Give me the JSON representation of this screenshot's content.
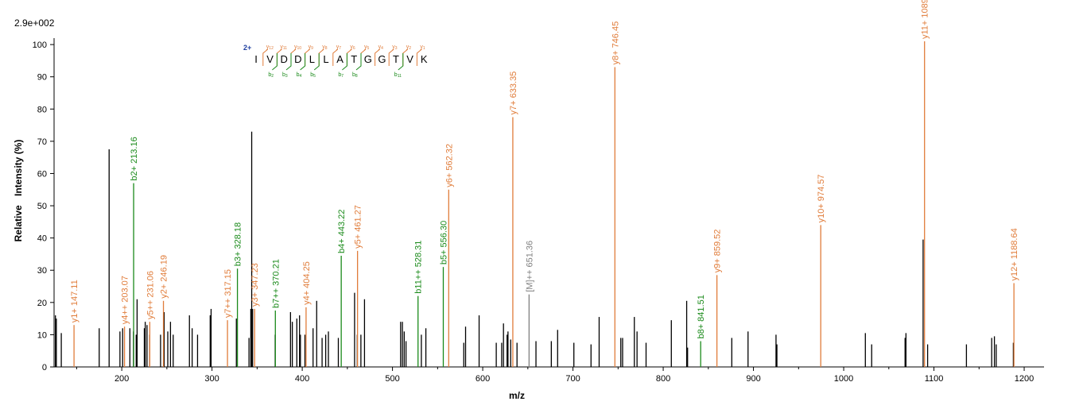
{
  "chart_data": {
    "type": "bar",
    "title": "",
    "scale_label": "2.9e+002",
    "xlabel": "m/z",
    "ylabel_parts": [
      "Relative",
      "Intensity (%)"
    ],
    "xlim": [
      125,
      1222
    ],
    "ylim": [
      0,
      102
    ],
    "x_ticks": [
      100,
      200,
      300,
      400,
      500,
      600,
      700,
      800,
      900,
      1000,
      1100,
      1200
    ],
    "y_ticks": [
      0,
      10,
      20,
      30,
      40,
      50,
      60,
      70,
      80,
      90,
      100
    ],
    "colors": {
      "unmatched": "#000000",
      "y_ion": "#E07C3A",
      "b_ion": "#1A8A1A",
      "precursor": "#808080",
      "charge": "#1F3FA0"
    },
    "unmatched_peaks": [
      [
        126.5,
        16
      ],
      [
        127.5,
        15
      ],
      [
        133,
        10.5
      ],
      [
        175,
        12
      ],
      [
        186,
        67.5
      ],
      [
        198,
        11
      ],
      [
        201,
        12
      ],
      [
        209,
        12
      ],
      [
        213,
        11
      ],
      [
        216,
        10
      ],
      [
        217,
        21
      ],
      [
        225,
        12
      ],
      [
        226,
        14
      ],
      [
        228,
        13
      ],
      [
        231,
        10
      ],
      [
        243,
        10
      ],
      [
        247,
        17
      ],
      [
        251,
        11
      ],
      [
        254,
        14
      ],
      [
        257,
        10
      ],
      [
        275,
        16
      ],
      [
        278,
        12
      ],
      [
        284,
        10
      ],
      [
        298,
        16
      ],
      [
        299,
        18
      ],
      [
        327,
        15
      ],
      [
        341,
        9
      ],
      [
        343,
        18
      ],
      [
        344,
        73
      ],
      [
        345,
        18
      ],
      [
        370,
        10
      ],
      [
        387,
        17
      ],
      [
        389,
        14
      ],
      [
        394,
        15
      ],
      [
        397,
        16
      ],
      [
        398,
        10
      ],
      [
        403,
        10
      ],
      [
        412,
        12
      ],
      [
        416,
        20.5
      ],
      [
        422,
        9
      ],
      [
        426,
        10
      ],
      [
        429,
        11
      ],
      [
        440,
        9
      ],
      [
        458,
        23
      ],
      [
        461,
        10
      ],
      [
        465,
        10
      ],
      [
        469,
        21
      ],
      [
        509,
        14
      ],
      [
        511,
        14
      ],
      [
        513,
        11
      ],
      [
        515,
        8
      ],
      [
        532,
        10
      ],
      [
        537,
        12
      ],
      [
        579,
        7.5
      ],
      [
        581,
        12.5
      ],
      [
        596,
        16
      ],
      [
        615,
        7.5
      ],
      [
        621,
        7.5
      ],
      [
        623,
        13.5
      ],
      [
        627,
        10
      ],
      [
        628,
        11
      ],
      [
        631,
        8.5
      ],
      [
        638,
        7.5
      ],
      [
        659,
        8
      ],
      [
        676,
        8
      ],
      [
        683,
        11.5
      ],
      [
        701,
        7.5
      ],
      [
        720,
        7
      ],
      [
        729,
        15.5
      ],
      [
        753,
        9
      ],
      [
        755,
        9
      ],
      [
        768,
        15.5
      ],
      [
        771,
        11
      ],
      [
        781,
        7.5
      ],
      [
        809,
        14.5
      ],
      [
        826,
        20.5
      ],
      [
        827,
        6
      ],
      [
        876,
        9
      ],
      [
        894,
        11
      ],
      [
        925,
        10
      ],
      [
        926,
        7
      ],
      [
        1024,
        10.5
      ],
      [
        1031,
        7
      ],
      [
        1068,
        9
      ],
      [
        1069,
        10.5
      ],
      [
        1088,
        39.5
      ],
      [
        1093,
        7
      ],
      [
        1136,
        7
      ],
      [
        1164,
        9
      ],
      [
        1167,
        9.5
      ],
      [
        1169,
        7
      ],
      [
        1188,
        7.5
      ]
    ],
    "annotated_peaks": [
      {
        "mz": 147.11,
        "intensity": 13,
        "label": "y1+ 147.11",
        "ion": "y"
      },
      {
        "mz": 203.07,
        "intensity": 12.5,
        "label": "y4++ 203.07",
        "ion": "y"
      },
      {
        "mz": 213.16,
        "intensity": 57,
        "label": "b2+ 213.16",
        "ion": "b"
      },
      {
        "mz": 231.06,
        "intensity": 14,
        "label": "y5++ 231.06",
        "ion": "y"
      },
      {
        "mz": 246.19,
        "intensity": 20.5,
        "label": "y2+ 246.19",
        "ion": "y"
      },
      {
        "mz": 317.15,
        "intensity": 14.5,
        "label": "y7++ 317.15",
        "ion": "y"
      },
      {
        "mz": 328.18,
        "intensity": 30.5,
        "label": "b3+ 328.18",
        "ion": "b"
      },
      {
        "mz": 347.23,
        "intensity": 18,
        "label": "y3+ 347.23",
        "ion": "y"
      },
      {
        "mz": 370.21,
        "intensity": 17.5,
        "label": "b7++ 370.21",
        "ion": "b"
      },
      {
        "mz": 404.25,
        "intensity": 18.5,
        "label": "y4+ 404.25",
        "ion": "y"
      },
      {
        "mz": 443.22,
        "intensity": 34.5,
        "label": "b4+ 443.22",
        "ion": "b"
      },
      {
        "mz": 461.27,
        "intensity": 36,
        "label": "y5+ 461.27",
        "ion": "y"
      },
      {
        "mz": 528.31,
        "intensity": 22,
        "label": "b11++ 528.31",
        "ion": "b"
      },
      {
        "mz": 556.3,
        "intensity": 31,
        "label": "b5+ 556.30",
        "ion": "b"
      },
      {
        "mz": 562.32,
        "intensity": 55,
        "label": "y6+ 562.32",
        "ion": "y"
      },
      {
        "mz": 633.35,
        "intensity": 77.5,
        "label": "y7+ 633.35",
        "ion": "y"
      },
      {
        "mz": 651.36,
        "intensity": 22.5,
        "label": "[M]++ 651.36",
        "ion": "precursor"
      },
      {
        "mz": 746.45,
        "intensity": 93,
        "label": "y8+ 746.45",
        "ion": "y"
      },
      {
        "mz": 841.51,
        "intensity": 8,
        "label": "b8+ 841.51",
        "ion": "b"
      },
      {
        "mz": 859.52,
        "intensity": 28.5,
        "label": "y9+ 859.52",
        "ion": "y"
      },
      {
        "mz": 974.57,
        "intensity": 44,
        "label": "y10+ 974.57",
        "ion": "y"
      },
      {
        "mz": 1089.57,
        "intensity": 101,
        "label": "y11+ 1089.57",
        "ion": "y"
      },
      {
        "mz": 1188.64,
        "intensity": 26,
        "label": "y12+ 1188.64",
        "ion": "y"
      }
    ],
    "sequence": {
      "charge": "2+",
      "residues": [
        "I",
        "V",
        "D",
        "D",
        "L",
        "L",
        "A",
        "T",
        "G",
        "G",
        "T",
        "V",
        "K"
      ],
      "y_ions": [
        {
          "gap": 1,
          "name": "y",
          "sub": "12"
        },
        {
          "gap": 2,
          "name": "y",
          "sub": "11"
        },
        {
          "gap": 3,
          "name": "y",
          "sub": "10"
        },
        {
          "gap": 4,
          "name": "y",
          "sub": "9"
        },
        {
          "gap": 5,
          "name": "y",
          "sub": "8"
        },
        {
          "gap": 6,
          "name": "y",
          "sub": "7"
        },
        {
          "gap": 7,
          "name": "y",
          "sub": "6"
        },
        {
          "gap": 8,
          "name": "y",
          "sub": "5"
        },
        {
          "gap": 9,
          "name": "y",
          "sub": "4"
        },
        {
          "gap": 10,
          "name": "y",
          "sub": "3"
        },
        {
          "gap": 11,
          "name": "y",
          "sub": "2"
        },
        {
          "gap": 12,
          "name": "y",
          "sub": "1"
        }
      ],
      "b_ions": [
        {
          "gap": 2,
          "name": "b",
          "sub": "2"
        },
        {
          "gap": 3,
          "name": "b",
          "sub": "3"
        },
        {
          "gap": 4,
          "name": "b",
          "sub": "4"
        },
        {
          "gap": 5,
          "name": "b",
          "sub": "5"
        },
        {
          "gap": 7,
          "name": "b",
          "sub": "7"
        },
        {
          "gap": 8,
          "name": "b",
          "sub": "8"
        },
        {
          "gap": 11,
          "name": "b",
          "sub": "11"
        }
      ]
    }
  }
}
